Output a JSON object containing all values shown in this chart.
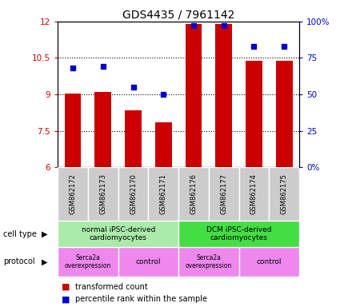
{
  "title": "GDS4435 / 7961142",
  "samples": [
    "GSM862172",
    "GSM862173",
    "GSM862170",
    "GSM862171",
    "GSM862176",
    "GSM862177",
    "GSM862174",
    "GSM862175"
  ],
  "bar_values": [
    9.05,
    9.1,
    8.35,
    7.85,
    11.9,
    11.9,
    10.4,
    10.4
  ],
  "dot_percentiles": [
    68,
    69,
    55,
    50,
    97,
    97,
    83,
    83
  ],
  "ylim_left": [
    6,
    12
  ],
  "ylim_right": [
    0,
    100
  ],
  "yticks_left": [
    6,
    7.5,
    9,
    10.5,
    12
  ],
  "yticks_right": [
    0,
    25,
    50,
    75,
    100
  ],
  "ytick_labels_right": [
    "0%",
    "25",
    "50",
    "75",
    "100%"
  ],
  "bar_color": "#cc0000",
  "dot_color": "#0000cc",
  "cell_type_groups": [
    {
      "label": "normal iPSC-derived\ncardiomyocytes",
      "start": 0,
      "end": 4,
      "color": "#aaeaaa"
    },
    {
      "label": "DCM iPSC-derived\ncardiomyocytes",
      "start": 4,
      "end": 8,
      "color": "#44dd44"
    }
  ],
  "protocol_groups": [
    {
      "label": "Serca2a\noverexpression",
      "start": 0,
      "end": 2,
      "color": "#ee88ee"
    },
    {
      "label": "control",
      "start": 2,
      "end": 4,
      "color": "#ee88ee"
    },
    {
      "label": "Serca2a\noverexpression",
      "start": 4,
      "end": 6,
      "color": "#ee88ee"
    },
    {
      "label": "control",
      "start": 6,
      "end": 8,
      "color": "#ee88ee"
    }
  ],
  "legend_red_label": "transformed count",
  "legend_blue_label": "percentile rank within the sample",
  "cell_type_label": "cell type",
  "protocol_label": "protocol",
  "sample_box_color": "#cccccc",
  "title_fontsize": 10,
  "tick_fontsize": 7.5,
  "sample_fontsize": 6,
  "annot_fontsize": 6.5,
  "legend_fontsize": 7
}
